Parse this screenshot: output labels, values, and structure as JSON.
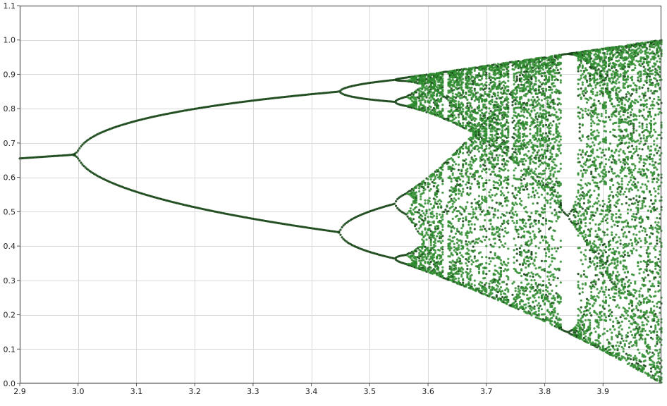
{
  "chart_data": {
    "type": "scatter",
    "title": "",
    "xlabel": "",
    "ylabel": "",
    "xlim": [
      2.9,
      4.0
    ],
    "ylim": [
      0.0,
      1.1
    ],
    "grid": true,
    "legend": "none",
    "x_ticks": [
      2.9,
      3.0,
      3.1,
      3.2,
      3.3,
      3.4,
      3.5,
      3.6,
      3.7,
      3.8,
      3.9
    ],
    "x_tick_labels": [
      "2.9",
      "3.0",
      "3.1",
      "3.2",
      "3.3",
      "3.4",
      "3.5",
      "3.6",
      "3.7",
      "3.8",
      "3.9"
    ],
    "y_ticks": [
      0.0,
      0.1,
      0.2,
      0.3,
      0.4,
      0.5,
      0.6,
      0.7,
      0.8,
      0.9,
      1.0,
      1.1
    ],
    "y_tick_labels": [
      "0.0",
      "0.1",
      "0.2",
      "0.3",
      "0.4",
      "0.5",
      "0.6",
      "0.7",
      "0.8",
      "0.9",
      "1.0",
      "1.1"
    ],
    "series": [
      {
        "color": "#2e8b2e",
        "map": "logistic",
        "r_min": 2.9,
        "r_max": 4.0,
        "r_step": 0.0025,
        "x0": 0.5,
        "transient_iterations": 400,
        "samples_per_r": 60,
        "description_note_free": true
      }
    ],
    "colors": {
      "points": "#2e8b2e",
      "points_dark": "#0d3d0d",
      "grid": "#d9d9d9",
      "frame": "#555555",
      "background": "#ffffff"
    }
  }
}
